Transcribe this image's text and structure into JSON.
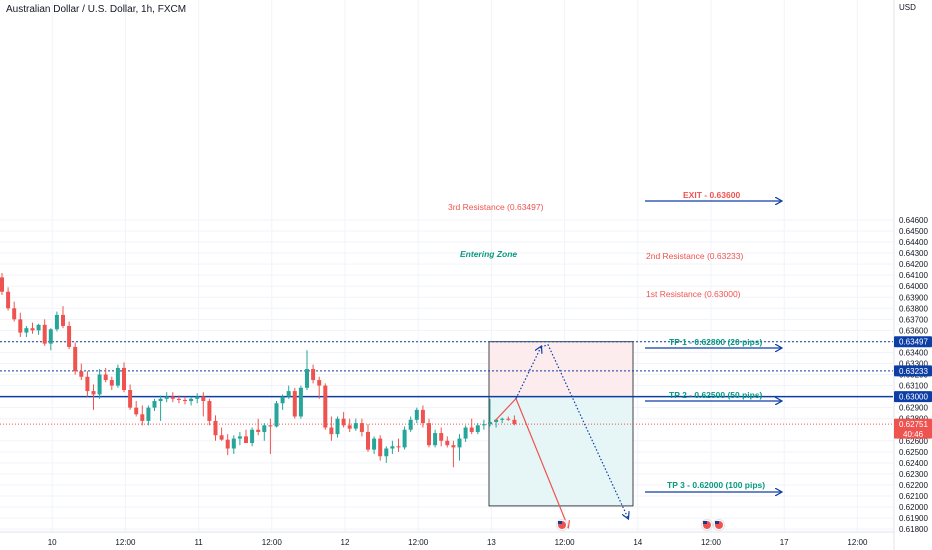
{
  "chart_data": {
    "type": "candlestick",
    "title": "Australian Dollar / U.S. Dollar, 1h, FXCM",
    "currency": "USD",
    "ylim": [
      0.6181,
      0.6652
    ],
    "y_ticks": [
      "0.64600",
      "0.64500",
      "0.64400",
      "0.64300",
      "0.64200",
      "0.64100",
      "0.64000",
      "0.63900",
      "0.63800",
      "0.63700",
      "0.63600",
      "0.63500",
      "0.63400",
      "0.63300",
      "0.63200",
      "0.63100",
      "0.62900",
      "0.62800",
      "0.62600",
      "0.62500",
      "0.62400",
      "0.62300",
      "0.62200",
      "0.62100",
      "0.62000",
      "0.61900",
      "0.61800"
    ],
    "x_ticks": [
      "10",
      "12:00",
      "11",
      "12:00",
      "12",
      "12:00",
      "13",
      "12:00",
      "14",
      "12:00",
      "17",
      "12:00"
    ],
    "x_tick_index": [
      12,
      24,
      36,
      48,
      60,
      72,
      84,
      96,
      108,
      120,
      132,
      144
    ],
    "grid": true,
    "colors": {
      "up": "#26a69a",
      "down": "#ef5350",
      "blue": "#0d3ea6",
      "red": "#ef5350",
      "teal": "#089981"
    },
    "candles": [
      {
        "o": 0.6408,
        "h": 0.6412,
        "l": 0.6392,
        "c": 0.6395
      },
      {
        "o": 0.6395,
        "h": 0.6399,
        "l": 0.6378,
        "c": 0.638
      },
      {
        "o": 0.638,
        "h": 0.6386,
        "l": 0.6368,
        "c": 0.637
      },
      {
        "o": 0.637,
        "h": 0.6376,
        "l": 0.6354,
        "c": 0.6358
      },
      {
        "o": 0.6358,
        "h": 0.6364,
        "l": 0.6354,
        "c": 0.6362
      },
      {
        "o": 0.6362,
        "h": 0.6367,
        "l": 0.6357,
        "c": 0.636
      },
      {
        "o": 0.636,
        "h": 0.6366,
        "l": 0.6356,
        "c": 0.6365
      },
      {
        "o": 0.6365,
        "h": 0.637,
        "l": 0.6346,
        "c": 0.6348
      },
      {
        "o": 0.6348,
        "h": 0.6362,
        "l": 0.6342,
        "c": 0.6361
      },
      {
        "o": 0.6361,
        "h": 0.6377,
        "l": 0.6359,
        "c": 0.6374
      },
      {
        "o": 0.6374,
        "h": 0.6382,
        "l": 0.6362,
        "c": 0.6364
      },
      {
        "o": 0.6364,
        "h": 0.6368,
        "l": 0.6343,
        "c": 0.6345
      },
      {
        "o": 0.6345,
        "h": 0.6349,
        "l": 0.632,
        "c": 0.6323
      },
      {
        "o": 0.6323,
        "h": 0.633,
        "l": 0.6315,
        "c": 0.6318
      },
      {
        "o": 0.6318,
        "h": 0.6323,
        "l": 0.63,
        "c": 0.6305
      },
      {
        "o": 0.6305,
        "h": 0.6311,
        "l": 0.6288,
        "c": 0.6302
      },
      {
        "o": 0.6302,
        "h": 0.6325,
        "l": 0.6298,
        "c": 0.632
      },
      {
        "o": 0.632,
        "h": 0.6326,
        "l": 0.6313,
        "c": 0.6315
      },
      {
        "o": 0.6315,
        "h": 0.6318,
        "l": 0.6306,
        "c": 0.631
      },
      {
        "o": 0.631,
        "h": 0.6329,
        "l": 0.6308,
        "c": 0.6326
      },
      {
        "o": 0.6326,
        "h": 0.6331,
        "l": 0.6304,
        "c": 0.6306
      },
      {
        "o": 0.6306,
        "h": 0.6311,
        "l": 0.6288,
        "c": 0.629
      },
      {
        "o": 0.629,
        "h": 0.6296,
        "l": 0.6282,
        "c": 0.6284
      },
      {
        "o": 0.6284,
        "h": 0.6292,
        "l": 0.6274,
        "c": 0.6278
      },
      {
        "o": 0.6278,
        "h": 0.6292,
        "l": 0.6274,
        "c": 0.629
      },
      {
        "o": 0.629,
        "h": 0.6298,
        "l": 0.6287,
        "c": 0.6296
      },
      {
        "o": 0.6296,
        "h": 0.6301,
        "l": 0.6278,
        "c": 0.6298
      },
      {
        "o": 0.6298,
        "h": 0.6304,
        "l": 0.6295,
        "c": 0.63
      },
      {
        "o": 0.63,
        "h": 0.6304,
        "l": 0.6295,
        "c": 0.6298
      },
      {
        "o": 0.6298,
        "h": 0.6301,
        "l": 0.6294,
        "c": 0.6297
      },
      {
        "o": 0.6297,
        "h": 0.63,
        "l": 0.6293,
        "c": 0.6296
      },
      {
        "o": 0.6296,
        "h": 0.63,
        "l": 0.6292,
        "c": 0.6298
      },
      {
        "o": 0.6298,
        "h": 0.6303,
        "l": 0.6294,
        "c": 0.63
      },
      {
        "o": 0.63,
        "h": 0.6304,
        "l": 0.6282,
        "c": 0.6296
      },
      {
        "o": 0.6296,
        "h": 0.6298,
        "l": 0.6274,
        "c": 0.6278
      },
      {
        "o": 0.6278,
        "h": 0.6283,
        "l": 0.626,
        "c": 0.6265
      },
      {
        "o": 0.6265,
        "h": 0.6272,
        "l": 0.626,
        "c": 0.6261
      },
      {
        "o": 0.6261,
        "h": 0.6266,
        "l": 0.6247,
        "c": 0.6253
      },
      {
        "o": 0.6253,
        "h": 0.6265,
        "l": 0.6248,
        "c": 0.6262
      },
      {
        "o": 0.6262,
        "h": 0.6268,
        "l": 0.6256,
        "c": 0.6264
      },
      {
        "o": 0.6264,
        "h": 0.627,
        "l": 0.626,
        "c": 0.6258
      },
      {
        "o": 0.6258,
        "h": 0.6272,
        "l": 0.6255,
        "c": 0.627
      },
      {
        "o": 0.627,
        "h": 0.628,
        "l": 0.6265,
        "c": 0.6268
      },
      {
        "o": 0.6268,
        "h": 0.6276,
        "l": 0.626,
        "c": 0.6274
      },
      {
        "o": 0.6274,
        "h": 0.628,
        "l": 0.6248,
        "c": 0.6273
      },
      {
        "o": 0.6273,
        "h": 0.6296,
        "l": 0.6272,
        "c": 0.6294
      },
      {
        "o": 0.6294,
        "h": 0.6302,
        "l": 0.6288,
        "c": 0.63
      },
      {
        "o": 0.63,
        "h": 0.631,
        "l": 0.6298,
        "c": 0.6305
      },
      {
        "o": 0.6305,
        "h": 0.6308,
        "l": 0.628,
        "c": 0.6282
      },
      {
        "o": 0.6282,
        "h": 0.631,
        "l": 0.628,
        "c": 0.6308
      },
      {
        "o": 0.6308,
        "h": 0.6342,
        "l": 0.6306,
        "c": 0.6325
      },
      {
        "o": 0.6325,
        "h": 0.6329,
        "l": 0.6312,
        "c": 0.6315
      },
      {
        "o": 0.6315,
        "h": 0.6318,
        "l": 0.6298,
        "c": 0.631
      },
      {
        "o": 0.631,
        "h": 0.6312,
        "l": 0.627,
        "c": 0.6272
      },
      {
        "o": 0.6272,
        "h": 0.6282,
        "l": 0.626,
        "c": 0.6266
      },
      {
        "o": 0.6266,
        "h": 0.6282,
        "l": 0.6263,
        "c": 0.628
      },
      {
        "o": 0.628,
        "h": 0.6286,
        "l": 0.6272,
        "c": 0.6274
      },
      {
        "o": 0.6274,
        "h": 0.628,
        "l": 0.6268,
        "c": 0.6271
      },
      {
        "o": 0.6271,
        "h": 0.628,
        "l": 0.6269,
        "c": 0.6276
      },
      {
        "o": 0.6276,
        "h": 0.628,
        "l": 0.6264,
        "c": 0.6268
      },
      {
        "o": 0.6268,
        "h": 0.6275,
        "l": 0.625,
        "c": 0.6252
      },
      {
        "o": 0.6252,
        "h": 0.6264,
        "l": 0.6248,
        "c": 0.6262
      },
      {
        "o": 0.6262,
        "h": 0.6265,
        "l": 0.6242,
        "c": 0.6246
      },
      {
        "o": 0.6246,
        "h": 0.6255,
        "l": 0.624,
        "c": 0.6253
      },
      {
        "o": 0.6253,
        "h": 0.626,
        "l": 0.6248,
        "c": 0.6255
      },
      {
        "o": 0.6255,
        "h": 0.6262,
        "l": 0.625,
        "c": 0.6254
      },
      {
        "o": 0.6254,
        "h": 0.6273,
        "l": 0.6252,
        "c": 0.627
      },
      {
        "o": 0.627,
        "h": 0.6282,
        "l": 0.6268,
        "c": 0.6279
      },
      {
        "o": 0.6279,
        "h": 0.629,
        "l": 0.6276,
        "c": 0.6288
      },
      {
        "o": 0.6288,
        "h": 0.6292,
        "l": 0.6272,
        "c": 0.6276
      },
      {
        "o": 0.6276,
        "h": 0.628,
        "l": 0.6254,
        "c": 0.6256
      },
      {
        "o": 0.6256,
        "h": 0.627,
        "l": 0.6254,
        "c": 0.6267
      },
      {
        "o": 0.6267,
        "h": 0.6272,
        "l": 0.6255,
        "c": 0.626
      },
      {
        "o": 0.626,
        "h": 0.6264,
        "l": 0.6254,
        "c": 0.6256
      },
      {
        "o": 0.6256,
        "h": 0.626,
        "l": 0.6236,
        "c": 0.6254
      },
      {
        "o": 0.6254,
        "h": 0.6266,
        "l": 0.6242,
        "c": 0.6262
      },
      {
        "o": 0.6262,
        "h": 0.6274,
        "l": 0.6259,
        "c": 0.6272
      },
      {
        "o": 0.6272,
        "h": 0.628,
        "l": 0.6266,
        "c": 0.6268
      },
      {
        "o": 0.6268,
        "h": 0.6276,
        "l": 0.6266,
        "c": 0.6274
      },
      {
        "o": 0.6274,
        "h": 0.6279,
        "l": 0.627,
        "c": 0.6275
      },
      {
        "o": 0.6275,
        "h": 0.6298,
        "l": 0.6273,
        "c": 0.6277
      },
      {
        "o": 0.6277,
        "h": 0.628,
        "l": 0.6272,
        "c": 0.6279
      },
      {
        "o": 0.6279,
        "h": 0.6281,
        "l": 0.6276,
        "c": 0.628
      },
      {
        "o": 0.628,
        "h": 0.6282,
        "l": 0.6278,
        "c": 0.6279
      },
      {
        "o": 0.6279,
        "h": 0.6283,
        "l": 0.6274,
        "c": 0.62751
      }
    ],
    "levels": [
      {
        "price": 0.63497,
        "style": "dotted",
        "color": "#0d3ea6",
        "label": "0.63497",
        "label_bg": "#0d3ea6"
      },
      {
        "price": 0.63233,
        "style": "dotted",
        "color": "#0d3ea6",
        "label": "0.63233",
        "label_bg": "#0d3ea6"
      },
      {
        "price": 0.63,
        "style": "solid",
        "color": "#0d3ea6",
        "label": "0.63000",
        "label_bg": "#0d3ea6"
      },
      {
        "price": 0.62751,
        "style": "dotted",
        "color": "#ef5350",
        "label": "0.62751",
        "label_bg": "#ef5350",
        "sub": "40:46"
      }
    ],
    "annotations": {
      "third_resistance": "3rd Resistance (0.63497)",
      "second_resistance": "2nd Resistance (0.63233)",
      "first_resistance": "1st Resistance (0.63000)",
      "entering_zone": "Entering Zone",
      "exit": "EXIT - 0.63600",
      "tp1": "TP 1 - 0.62800 (20 pips)",
      "tp2": "TP 2 - 0.62500 (50 pips)",
      "tp3": "TP 3 - 0.62000 (100 pips)"
    },
    "zones": {
      "red": {
        "top": 0.63497,
        "bottom": 0.63
      },
      "green": {
        "top": 0.63,
        "bottom": 0.6201
      }
    }
  }
}
